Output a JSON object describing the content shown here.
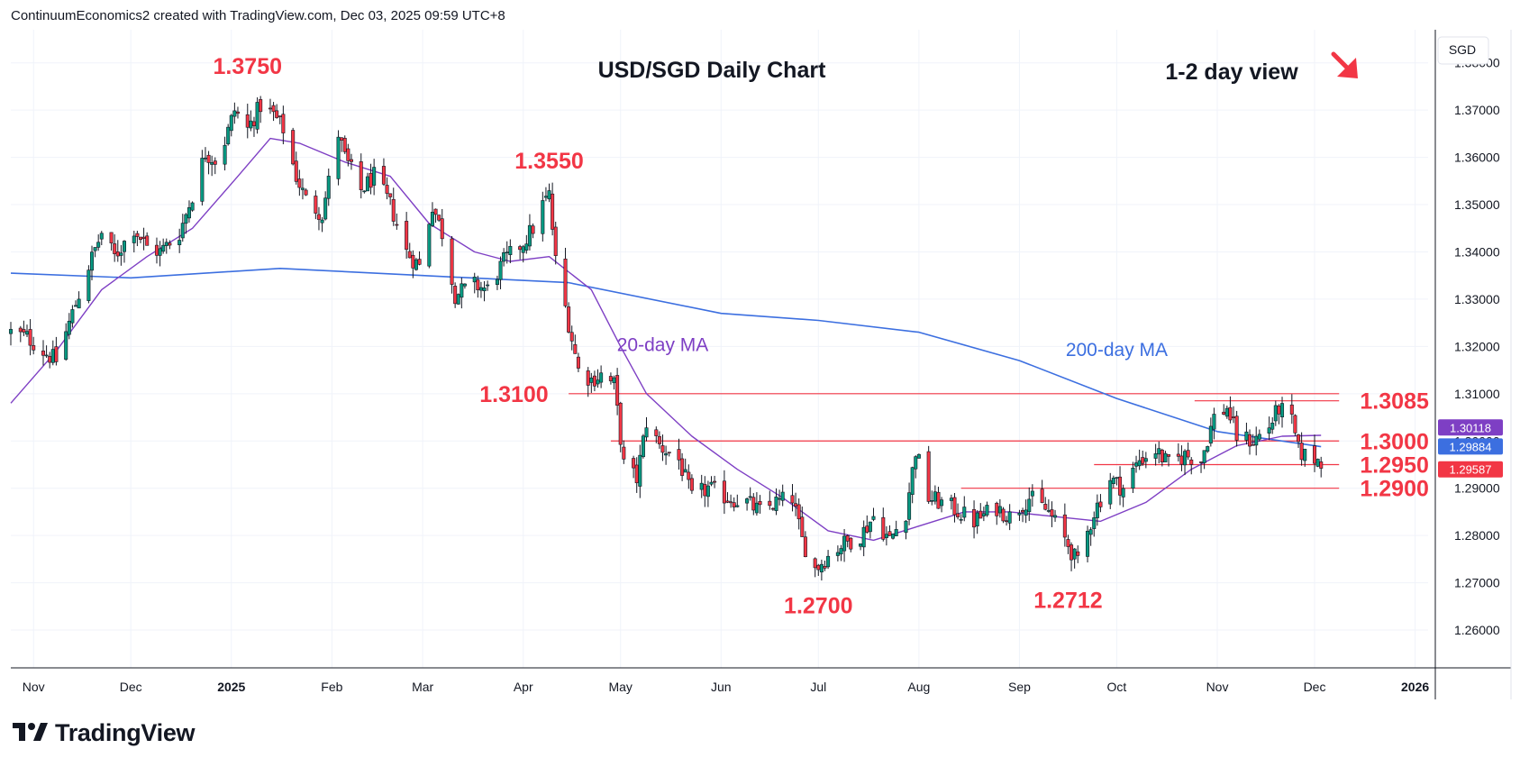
{
  "header": {
    "attribution": "ContinuumEconomics2 created with TradingView.com, Dec 03, 2025 09:59 UTC+8"
  },
  "branding": {
    "logo_text": "TradingView",
    "logo_icon": "tradingview-logo-icon"
  },
  "chart_data": {
    "type": "candlestick",
    "title": "USD/SGD Daily Chart",
    "subtitle": "1-2 day view",
    "currency": "SGD",
    "bias_arrow": "down-right",
    "colors": {
      "up": "#089981",
      "down": "#f23645",
      "ma20": "#7e3fc4",
      "ma200": "#3c6fe0",
      "level": "#f23645",
      "label": "#f23645"
    },
    "ylim": [
      1.252,
      1.387
    ],
    "yticks": [
      "1.38000",
      "1.37000",
      "1.36000",
      "1.35000",
      "1.34000",
      "1.33000",
      "1.32000",
      "1.31000",
      "1.30000",
      "1.29000",
      "1.28000",
      "1.27000",
      "1.26000"
    ],
    "xticks": [
      {
        "label": "Nov",
        "date": "2024-11-01"
      },
      {
        "label": "Dec",
        "date": "2024-12-01"
      },
      {
        "label": "2025",
        "date": "2025-01-01"
      },
      {
        "label": "Feb",
        "date": "2025-02-01"
      },
      {
        "label": "Mar",
        "date": "2025-03-01"
      },
      {
        "label": "Apr",
        "date": "2025-04-01"
      },
      {
        "label": "May",
        "date": "2025-05-01"
      },
      {
        "label": "Jun",
        "date": "2025-06-01"
      },
      {
        "label": "Jul",
        "date": "2025-07-01"
      },
      {
        "label": "Aug",
        "date": "2025-08-01"
      },
      {
        "label": "Sep",
        "date": "2025-09-01"
      },
      {
        "label": "Oct",
        "date": "2025-10-01"
      },
      {
        "label": "Nov",
        "date": "2025-11-01"
      },
      {
        "label": "Dec",
        "date": "2025-12-01"
      },
      {
        "label": "2026",
        "date": "2026-01-01"
      }
    ],
    "xlim": [
      "2024-10-25",
      "2026-01-05"
    ],
    "close_path": [
      [
        "2024-10-25",
        1.323
      ],
      [
        "2024-10-30",
        1.322
      ],
      [
        "2024-11-04",
        1.319
      ],
      [
        "2024-11-08",
        1.317
      ],
      [
        "2024-11-12",
        1.325
      ],
      [
        "2024-11-18",
        1.337
      ],
      [
        "2024-11-22",
        1.344
      ],
      [
        "2024-11-26",
        1.339
      ],
      [
        "2024-12-02",
        1.345
      ],
      [
        "2024-12-06",
        1.341
      ],
      [
        "2024-12-10",
        1.34
      ],
      [
        "2024-12-16",
        1.344
      ],
      [
        "2024-12-20",
        1.352
      ],
      [
        "2024-12-24",
        1.361
      ],
      [
        "2024-12-28",
        1.359
      ],
      [
        "2025-01-02",
        1.37
      ],
      [
        "2025-01-06",
        1.366
      ],
      [
        "2025-01-10",
        1.371
      ],
      [
        "2025-01-14",
        1.369
      ],
      [
        "2025-01-17",
        1.366
      ],
      [
        "2025-01-21",
        1.356
      ],
      [
        "2025-01-24",
        1.351
      ],
      [
        "2025-01-29",
        1.348
      ],
      [
        "2025-02-03",
        1.365
      ],
      [
        "2025-02-05",
        1.36
      ],
      [
        "2025-02-10",
        1.353
      ],
      [
        "2025-02-14",
        1.356
      ],
      [
        "2025-02-19",
        1.35
      ],
      [
        "2025-02-24",
        1.34
      ],
      [
        "2025-02-28",
        1.337
      ],
      [
        "2025-03-04",
        1.35
      ],
      [
        "2025-03-07",
        1.344
      ],
      [
        "2025-03-11",
        1.331
      ],
      [
        "2025-03-17",
        1.333
      ],
      [
        "2025-03-21",
        1.332
      ],
      [
        "2025-03-26",
        1.338
      ],
      [
        "2025-04-01",
        1.342
      ],
      [
        "2025-04-04",
        1.345
      ],
      [
        "2025-04-07",
        1.35
      ],
      [
        "2025-04-09",
        1.352
      ],
      [
        "2025-04-11",
        1.338
      ],
      [
        "2025-04-15",
        1.325
      ],
      [
        "2025-04-18",
        1.315
      ],
      [
        "2025-04-22",
        1.313
      ],
      [
        "2025-04-25",
        1.314
      ],
      [
        "2025-04-29",
        1.312
      ],
      [
        "2025-05-02",
        1.295
      ],
      [
        "2025-05-06",
        1.292
      ],
      [
        "2025-05-09",
        1.304
      ],
      [
        "2025-05-13",
        1.299
      ],
      [
        "2025-05-19",
        1.296
      ],
      [
        "2025-05-23",
        1.288
      ],
      [
        "2025-05-28",
        1.29
      ],
      [
        "2025-06-03",
        1.288
      ],
      [
        "2025-06-09",
        1.287
      ],
      [
        "2025-06-13",
        1.285
      ],
      [
        "2025-06-18",
        1.287
      ],
      [
        "2025-06-23",
        1.288
      ],
      [
        "2025-06-26",
        1.279
      ],
      [
        "2025-06-30",
        1.273
      ],
      [
        "2025-07-03",
        1.275
      ],
      [
        "2025-07-08",
        1.278
      ],
      [
        "2025-07-14",
        1.28
      ],
      [
        "2025-07-18",
        1.284
      ],
      [
        "2025-07-23",
        1.279
      ],
      [
        "2025-07-28",
        1.285
      ],
      [
        "2025-07-31",
        1.298
      ],
      [
        "2025-08-04",
        1.288
      ],
      [
        "2025-08-11",
        1.286
      ],
      [
        "2025-08-18",
        1.283
      ],
      [
        "2025-08-25",
        1.286
      ],
      [
        "2025-08-29",
        1.284
      ],
      [
        "2025-09-04",
        1.288
      ],
      [
        "2025-09-10",
        1.285
      ],
      [
        "2025-09-16",
        1.278
      ],
      [
        "2025-09-19",
        1.274
      ],
      [
        "2025-09-24",
        1.285
      ],
      [
        "2025-09-29",
        1.292
      ],
      [
        "2025-10-03",
        1.29
      ],
      [
        "2025-10-08",
        1.296
      ],
      [
        "2025-10-13",
        1.298
      ],
      [
        "2025-10-17",
        1.295
      ],
      [
        "2025-10-22",
        1.297
      ],
      [
        "2025-10-27",
        1.296
      ],
      [
        "2025-10-31",
        1.305
      ],
      [
        "2025-11-04",
        1.307
      ],
      [
        "2025-11-07",
        1.301
      ],
      [
        "2025-11-12",
        1.3
      ],
      [
        "2025-11-17",
        1.303
      ],
      [
        "2025-11-20",
        1.307
      ],
      [
        "2025-11-24",
        1.304
      ],
      [
        "2025-11-26",
        1.298
      ],
      [
        "2025-11-28",
        1.297
      ],
      [
        "2025-12-02",
        1.296
      ],
      [
        "2025-12-03",
        1.2959
      ]
    ],
    "ma20_path": [
      [
        "2024-10-25",
        1.308
      ],
      [
        "2024-11-08",
        1.319
      ],
      [
        "2024-11-22",
        1.332
      ],
      [
        "2024-12-06",
        1.339
      ],
      [
        "2024-12-20",
        1.345
      ],
      [
        "2025-01-03",
        1.356
      ],
      [
        "2025-01-13",
        1.364
      ],
      [
        "2025-01-22",
        1.363
      ],
      [
        "2025-02-05",
        1.359
      ],
      [
        "2025-02-19",
        1.356
      ],
      [
        "2025-03-03",
        1.346
      ],
      [
        "2025-03-17",
        1.34
      ],
      [
        "2025-03-28",
        1.338
      ],
      [
        "2025-04-09",
        1.339
      ],
      [
        "2025-04-22",
        1.332
      ],
      [
        "2025-05-01",
        1.32
      ],
      [
        "2025-05-09",
        1.31
      ],
      [
        "2025-05-23",
        1.301
      ],
      [
        "2025-06-06",
        1.294
      ],
      [
        "2025-06-20",
        1.288
      ],
      [
        "2025-07-04",
        1.281
      ],
      [
        "2025-07-18",
        1.279
      ],
      [
        "2025-08-01",
        1.282
      ],
      [
        "2025-08-15",
        1.285
      ],
      [
        "2025-08-29",
        1.285
      ],
      [
        "2025-09-12",
        1.284
      ],
      [
        "2025-09-26",
        1.283
      ],
      [
        "2025-10-10",
        1.287
      ],
      [
        "2025-10-24",
        1.294
      ],
      [
        "2025-11-07",
        1.299
      ],
      [
        "2025-11-21",
        1.301
      ],
      [
        "2025-12-03",
        1.3012
      ]
    ],
    "ma200_path": [
      [
        "2024-10-25",
        1.3355
      ],
      [
        "2024-12-01",
        1.3345
      ],
      [
        "2025-01-16",
        1.3365
      ],
      [
        "2025-03-01",
        1.335
      ],
      [
        "2025-04-15",
        1.3335
      ],
      [
        "2025-06-01",
        1.327
      ],
      [
        "2025-07-01",
        1.3255
      ],
      [
        "2025-08-01",
        1.323
      ],
      [
        "2025-09-01",
        1.317
      ],
      [
        "2025-10-01",
        1.309
      ],
      [
        "2025-11-01",
        1.302
      ],
      [
        "2025-12-03",
        1.2988
      ]
    ],
    "price_labels": [
      {
        "text": "1.30118",
        "value": 1.30118,
        "color": "#7e3fc4"
      },
      {
        "text": "1.29884",
        "value": 1.29884,
        "color": "#3c6fe0"
      },
      {
        "text": "1.29587",
        "value": 1.29587,
        "color": "#f23645"
      }
    ],
    "levels": [
      {
        "value": 1.31,
        "start": "2025-04-15",
        "end": "2025-12-03"
      },
      {
        "value": 1.3,
        "start": "2025-04-28",
        "end": "2025-12-03"
      },
      {
        "value": 1.3085,
        "start": "2025-10-25",
        "end": "2025-12-03"
      },
      {
        "value": 1.295,
        "start": "2025-09-24",
        "end": "2025-12-03"
      },
      {
        "value": 1.29,
        "start": "2025-08-14",
        "end": "2025-12-03"
      }
    ],
    "annotations": [
      {
        "text": "1.3750",
        "value": 1.375,
        "date": "2025-01-06",
        "pos": "above"
      },
      {
        "text": "1.3550",
        "value": 1.355,
        "date": "2025-04-09",
        "pos": "above"
      },
      {
        "text": "1.3100",
        "value": 1.31,
        "date": "2025-04-11",
        "pos": "left"
      },
      {
        "text": "1.2700",
        "value": 1.27,
        "date": "2025-07-01",
        "pos": "below"
      },
      {
        "text": "1.2712",
        "value": 1.2712,
        "date": "2025-09-16",
        "pos": "below"
      },
      {
        "text": "1.3085",
        "value": 1.3085,
        "date": "2025-12-15",
        "pos": "right"
      },
      {
        "text": "1.3000",
        "value": 1.3,
        "date": "2025-12-15",
        "pos": "right"
      },
      {
        "text": "1.2950",
        "value": 1.295,
        "date": "2025-12-15",
        "pos": "right"
      },
      {
        "text": "1.2900",
        "value": 1.29,
        "date": "2025-12-15",
        "pos": "right"
      }
    ],
    "ma_labels": [
      {
        "text": "20-day MA",
        "color": "#7e3fc4",
        "date": "2025-05-14",
        "value": 1.319
      },
      {
        "text": "200-day MA",
        "color": "#3c6fe0",
        "date": "2025-10-01",
        "value": 1.318
      }
    ]
  }
}
